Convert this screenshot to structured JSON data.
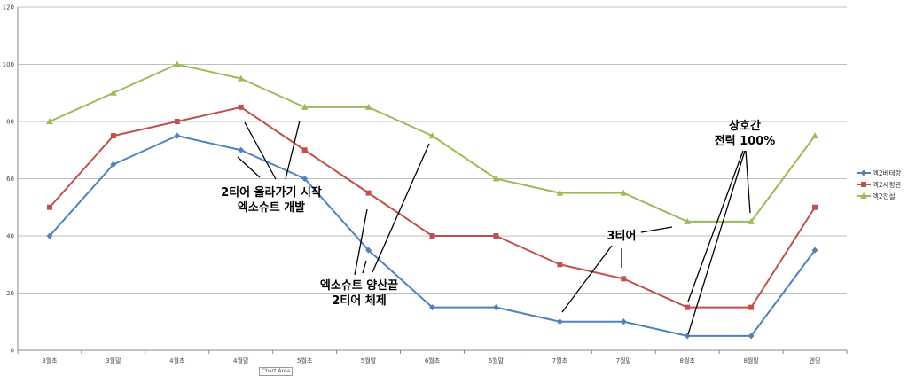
{
  "chart_data": {
    "type": "line",
    "categories": [
      "3월초",
      "3월말",
      "4월초",
      "4월말",
      "5월초",
      "5월말",
      "6월초",
      "6월말",
      "7월초",
      "7월말",
      "8월초",
      "8월말",
      "엔딩"
    ],
    "ylim": [
      0,
      120
    ],
    "yticks": [
      0,
      20,
      40,
      60,
      80,
      100,
      120
    ],
    "grid": true,
    "legend_position": "right",
    "series": [
      {
        "name": "엑2베테랑",
        "color": "#4f81bd",
        "marker": "diamond",
        "values": [
          40,
          65,
          75,
          70,
          60,
          35,
          15,
          15,
          10,
          10,
          5,
          5,
          35
        ]
      },
      {
        "name": "엑2사령관",
        "color": "#c0504d",
        "marker": "square",
        "values": [
          50,
          75,
          80,
          85,
          70,
          55,
          40,
          40,
          30,
          25,
          15,
          15,
          50
        ]
      },
      {
        "name": "엑2전설",
        "color": "#9bbb59",
        "marker": "triangle",
        "values": [
          80,
          90,
          100,
          95,
          85,
          85,
          75,
          60,
          55,
          55,
          45,
          45,
          75
        ]
      }
    ],
    "annotations": [
      "2티어 올라가기 시작",
      "엑소슈트 개발",
      "엑소슈트 양산끝",
      "2티어 체제",
      "3티어",
      "상호간",
      "전력 100%"
    ]
  },
  "ui": {
    "chart_area_label": "Chart Area"
  }
}
